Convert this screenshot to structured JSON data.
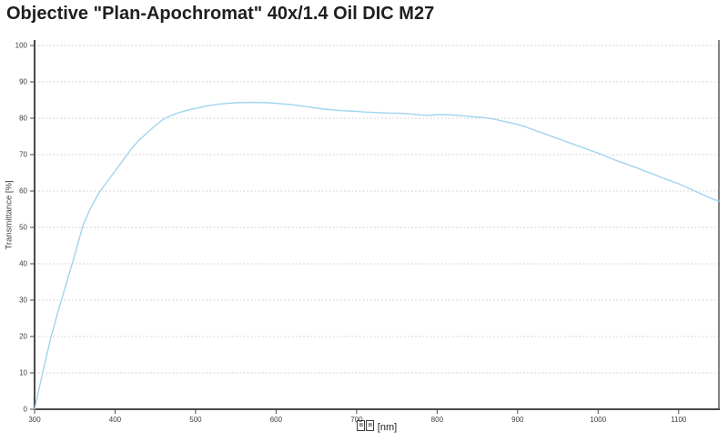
{
  "page": {
    "background": "#ffffff"
  },
  "chart_data": {
    "type": "line",
    "title": "Objective \"Plan-Apochromat\" 40x/1.4 Oil DIC M27",
    "ylabel": "Transmittance [%]",
    "xlabel": "[nm]",
    "xlabel_missing_glyph_boxes": 2,
    "xlim": [
      300,
      1150
    ],
    "ylim": [
      0,
      100
    ],
    "xticks": [
      300,
      400,
      500,
      600,
      700,
      800,
      900,
      1000,
      1100
    ],
    "yticks": [
      0,
      10,
      20,
      30,
      40,
      50,
      60,
      70,
      80,
      90,
      100
    ],
    "grid": "horizontal dotted",
    "legend": "none",
    "colors": {
      "line": "#a0d4ef",
      "axis": "#4a4a4a",
      "grid": "#c9c9c9",
      "right_border": "#828282",
      "tick_text": "#3d3d3d",
      "title_text": "#1f1f1f"
    },
    "series": [
      {
        "name": "Transmittance",
        "points": [
          [
            300,
            0
          ],
          [
            305,
            5
          ],
          [
            310,
            10
          ],
          [
            315,
            14.8
          ],
          [
            320,
            19.5
          ],
          [
            325,
            23.5
          ],
          [
            330,
            27.5
          ],
          [
            335,
            31.3
          ],
          [
            340,
            35
          ],
          [
            345,
            38.8
          ],
          [
            350,
            42.5
          ],
          [
            355,
            46.5
          ],
          [
            360,
            50.5
          ],
          [
            365,
            53
          ],
          [
            370,
            55.5
          ],
          [
            375,
            57.5
          ],
          [
            380,
            59.5
          ],
          [
            385,
            61
          ],
          [
            390,
            62.5
          ],
          [
            395,
            64
          ],
          [
            400,
            65.5
          ],
          [
            405,
            67
          ],
          [
            410,
            68.5
          ],
          [
            415,
            70
          ],
          [
            420,
            71.5
          ],
          [
            425,
            72.8
          ],
          [
            430,
            74
          ],
          [
            435,
            75
          ],
          [
            440,
            76
          ],
          [
            445,
            77
          ],
          [
            450,
            78
          ],
          [
            455,
            78.9
          ],
          [
            460,
            79.7
          ],
          [
            465,
            80.3
          ],
          [
            470,
            80.8
          ],
          [
            475,
            81.2
          ],
          [
            480,
            81.6
          ],
          [
            485,
            81.9
          ],
          [
            490,
            82.2
          ],
          [
            495,
            82.5
          ],
          [
            500,
            82.7
          ],
          [
            510,
            83.2
          ],
          [
            520,
            83.6
          ],
          [
            530,
            83.9
          ],
          [
            540,
            84.1
          ],
          [
            550,
            84.25
          ],
          [
            560,
            84.3
          ],
          [
            570,
            84.35
          ],
          [
            580,
            84.3
          ],
          [
            590,
            84.25
          ],
          [
            600,
            84.1
          ],
          [
            610,
            83.9
          ],
          [
            620,
            83.7
          ],
          [
            630,
            83.4
          ],
          [
            640,
            83.1
          ],
          [
            650,
            82.8
          ],
          [
            660,
            82.5
          ],
          [
            670,
            82.3
          ],
          [
            680,
            82.1
          ],
          [
            690,
            82
          ],
          [
            700,
            81.9
          ],
          [
            710,
            81.7
          ],
          [
            720,
            81.6
          ],
          [
            730,
            81.5
          ],
          [
            740,
            81.4
          ],
          [
            750,
            81.4
          ],
          [
            760,
            81.3
          ],
          [
            770,
            81.1
          ],
          [
            780,
            80.9
          ],
          [
            790,
            80.8
          ],
          [
            800,
            81
          ],
          [
            810,
            81
          ],
          [
            820,
            80.9
          ],
          [
            830,
            80.7
          ],
          [
            840,
            80.5
          ],
          [
            850,
            80.3
          ],
          [
            860,
            80.1
          ],
          [
            870,
            79.8
          ],
          [
            880,
            79.3
          ],
          [
            890,
            78.8
          ],
          [
            900,
            78.3
          ],
          [
            910,
            77.6
          ],
          [
            920,
            76.8
          ],
          [
            930,
            76
          ],
          [
            940,
            75.2
          ],
          [
            950,
            74.4
          ],
          [
            960,
            73.6
          ],
          [
            970,
            72.8
          ],
          [
            980,
            72
          ],
          [
            990,
            71.2
          ],
          [
            1000,
            70.4
          ],
          [
            1010,
            69.5
          ],
          [
            1020,
            68.6
          ],
          [
            1030,
            67.8
          ],
          [
            1040,
            67
          ],
          [
            1050,
            66.2
          ],
          [
            1060,
            65.3
          ],
          [
            1070,
            64.5
          ],
          [
            1080,
            63.6
          ],
          [
            1090,
            62.8
          ],
          [
            1100,
            62
          ],
          [
            1110,
            61
          ],
          [
            1120,
            60
          ],
          [
            1130,
            59
          ],
          [
            1140,
            58
          ],
          [
            1150,
            57.2
          ]
        ]
      }
    ]
  }
}
